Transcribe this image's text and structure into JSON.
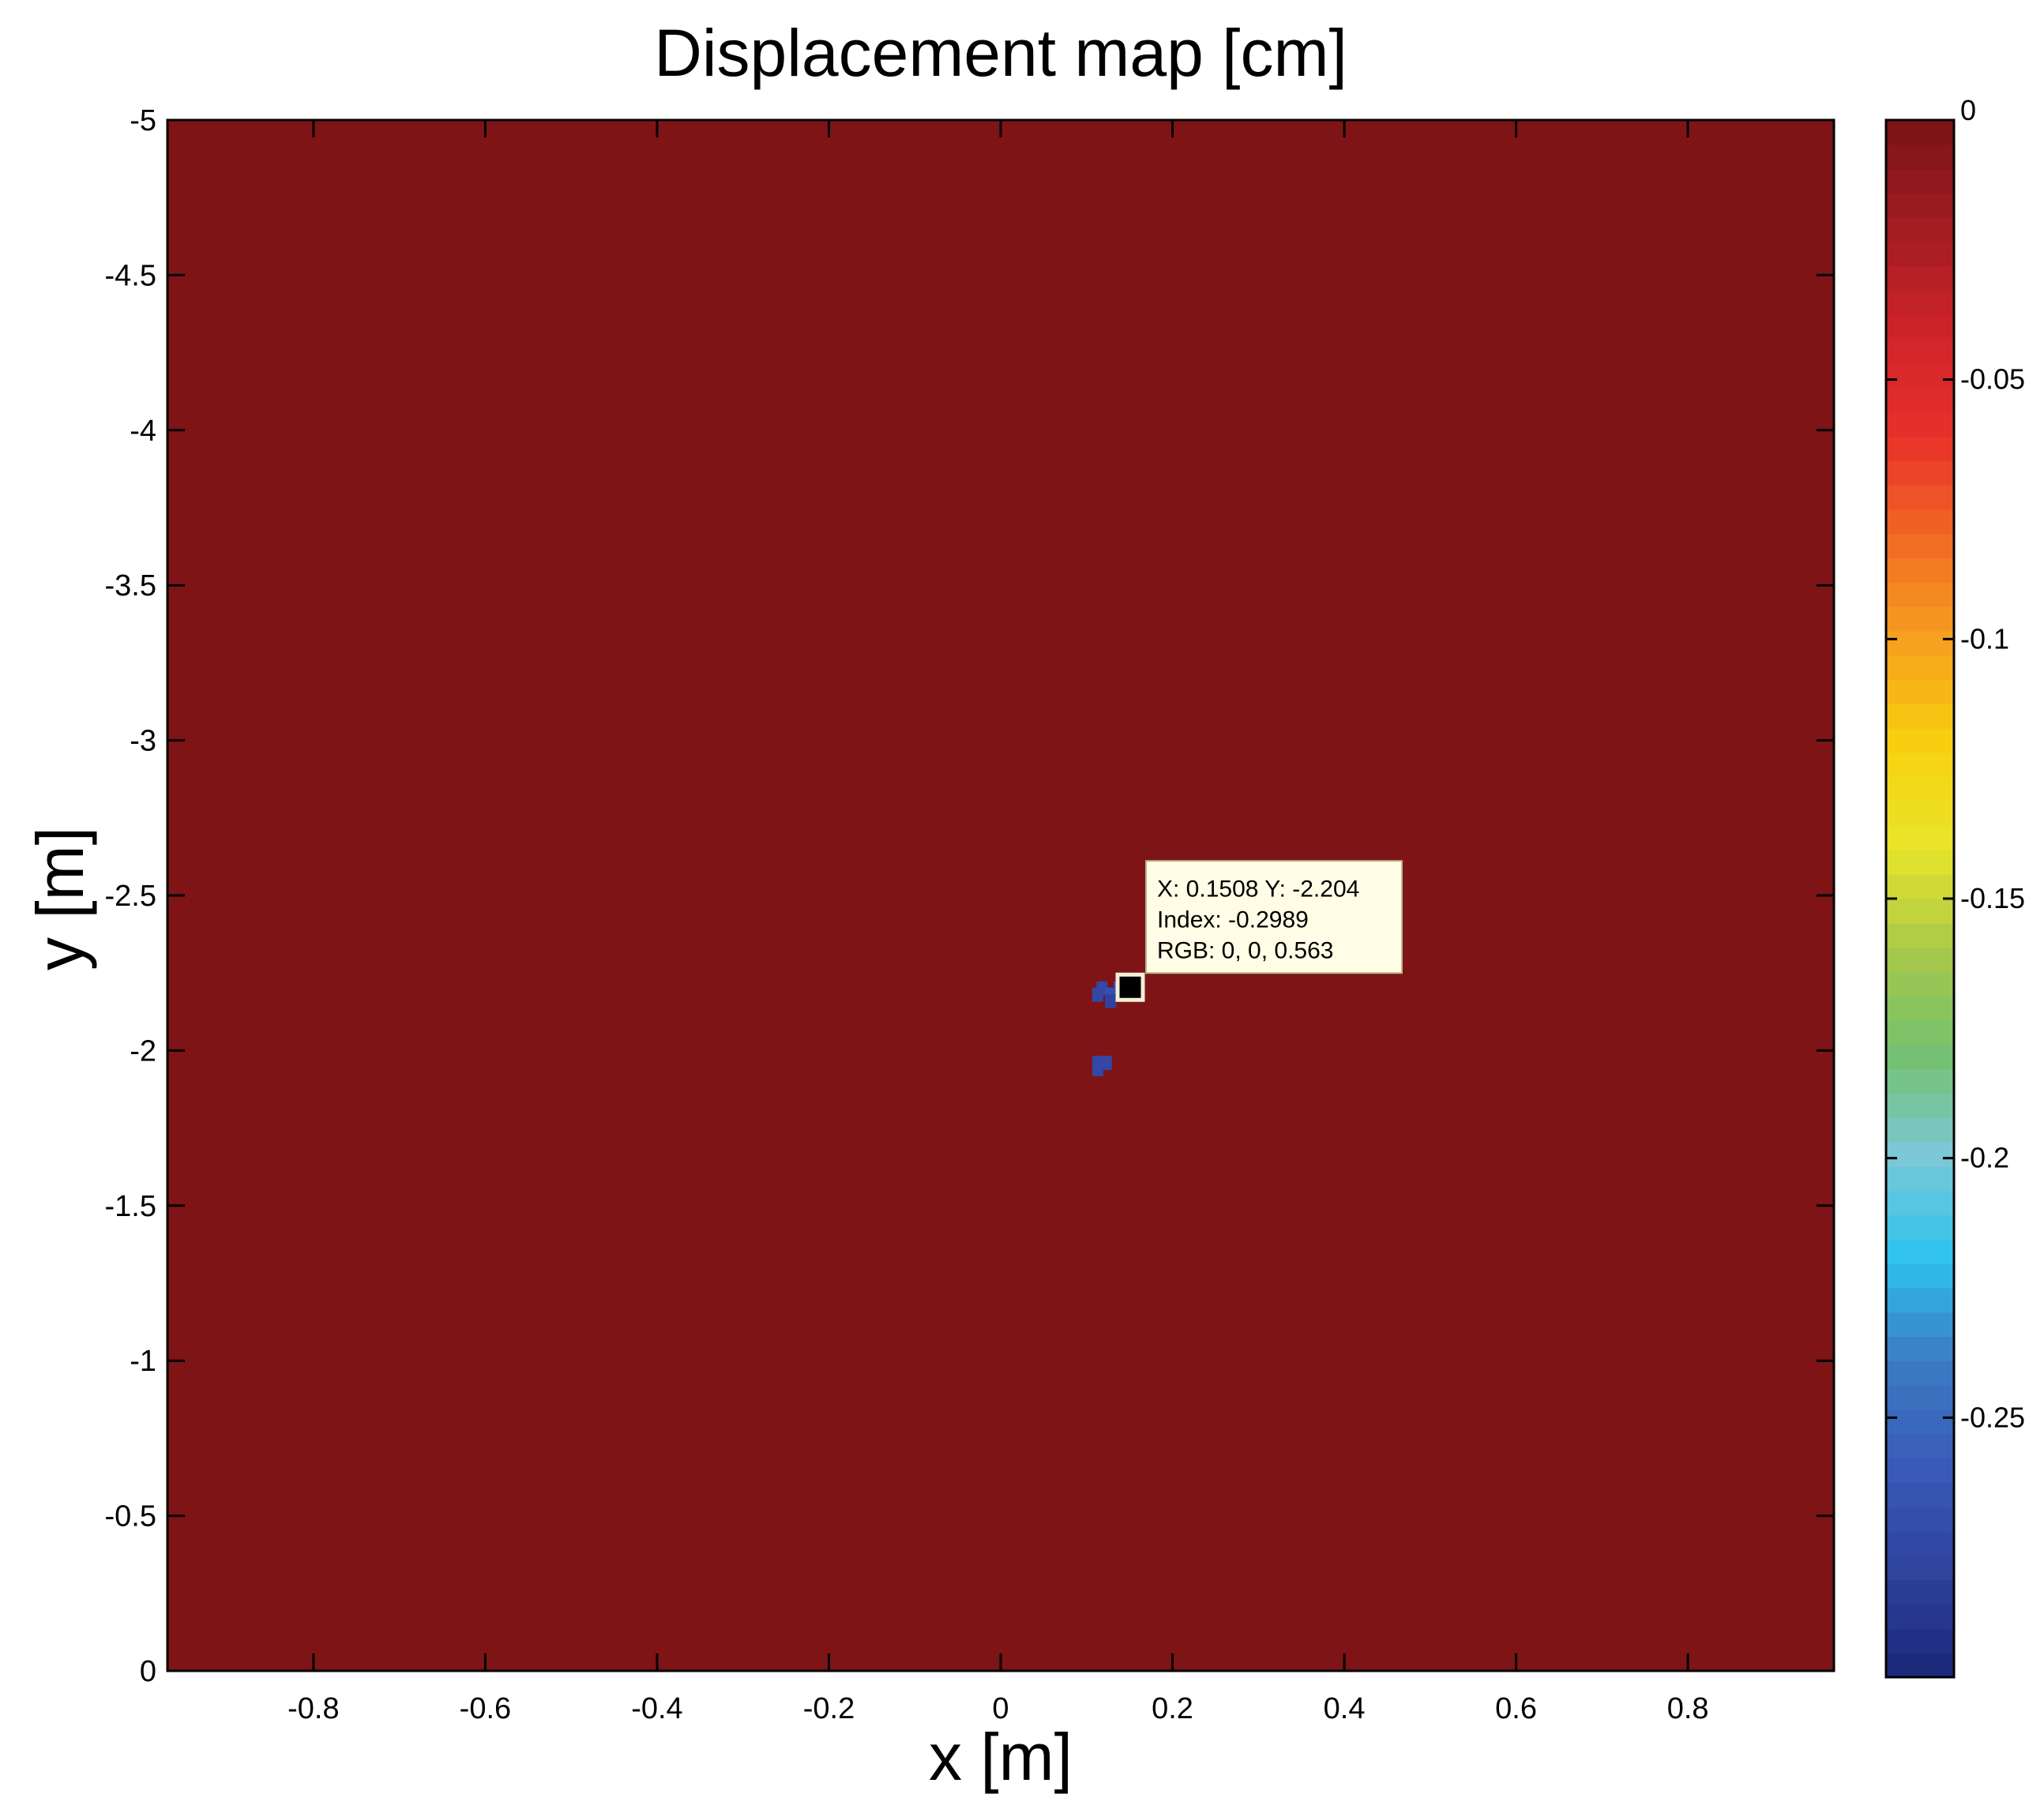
{
  "chart_data": {
    "type": "heatmap",
    "title": "Displacement map [cm]",
    "xlabel": "x [m]",
    "ylabel": "y [m]",
    "xlim": [
      -0.97,
      0.97
    ],
    "ylim": [
      -5,
      0
    ],
    "y_reversed_top_is": -5,
    "x_ticks": [
      -0.8,
      -0.6,
      -0.4,
      -0.2,
      0,
      0.2,
      0.4,
      0.6,
      0.8
    ],
    "x_tick_labels": [
      "-0.8",
      "-0.6",
      "-0.4",
      "-0.2",
      "0",
      "0.2",
      "0.4",
      "0.6",
      "0.8"
    ],
    "y_ticks": [
      -5,
      -4.5,
      -4,
      -3.5,
      -3,
      -2.5,
      -2,
      -1.5,
      -1,
      -0.5,
      0
    ],
    "y_tick_labels": [
      "-5",
      "-4.5",
      "-4",
      "-3.5",
      "-3",
      "-2.5",
      "-2",
      "-1.5",
      "-1",
      "-0.5",
      "0"
    ],
    "background_value": 0,
    "background_color": "#7e1416",
    "anomaly_cells": [
      {
        "x": 0.113,
        "y": -2.18,
        "value": -0.28,
        "color": "#3347a6"
      },
      {
        "x": 0.118,
        "y": -2.2,
        "value": -0.28,
        "color": "#3347a6"
      },
      {
        "x": 0.128,
        "y": -2.18,
        "value": -0.28,
        "color": "#3450b4"
      },
      {
        "x": 0.138,
        "y": -2.2,
        "value": -0.28,
        "color": "#3450b4"
      },
      {
        "x": 0.128,
        "y": -2.16,
        "value": -0.28,
        "color": "#2f42a0"
      },
      {
        "x": 0.113,
        "y": -1.96,
        "value": -0.28,
        "color": "#3347a6"
      },
      {
        "x": 0.113,
        "y": -1.94,
        "value": -0.28,
        "color": "#3347a6"
      },
      {
        "x": 0.123,
        "y": -1.96,
        "value": -0.28,
        "color": "#3347a6"
      }
    ],
    "datatip": {
      "x": 0.1508,
      "y": -2.204,
      "line1": "X: 0.1508 Y: -2.204",
      "line2": "Index: -0.2989",
      "line3": "RGB: 0, 0, 0.563"
    },
    "colorbar": {
      "min": -0.3,
      "max": 0,
      "ticks": [
        0,
        -0.05,
        -0.1,
        -0.15,
        -0.2,
        -0.25
      ],
      "tick_labels": [
        "0",
        "-0.05",
        "-0.1",
        "-0.15",
        "-0.2",
        "-0.25"
      ],
      "colormap": [
        "#1d2a7c",
        "#2f459f",
        "#3a5cb8",
        "#3b7cc4",
        "#2ec4ef",
        "#7cc8d6",
        "#74c16e",
        "#a8c94a",
        "#e9e52a",
        "#f8d10f",
        "#f6a21e",
        "#f26b24",
        "#e8312b",
        "#d0242a",
        "#a51d22",
        "#7e1416"
      ]
    }
  }
}
